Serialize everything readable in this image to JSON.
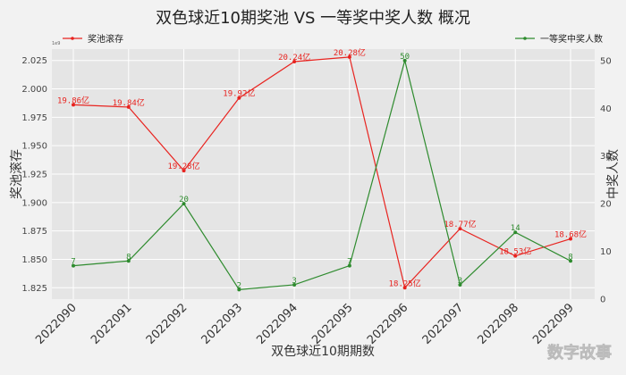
{
  "chart_data": {
    "type": "line",
    "title": "双色球近10期奖池 VS 一等奖中奖人数 概况",
    "xlabel": "双色球近10期期数",
    "categories": [
      "2022090",
      "2022091",
      "2022092",
      "2022093",
      "2022094",
      "2022095",
      "2022096",
      "2022097",
      "2022098",
      "2022099"
    ],
    "y_left": {
      "label": "奖池滚存",
      "ylim": [
        1.815,
        2.035
      ],
      "ticks": [
        "1.825",
        "1.850",
        "1.875",
        "1.900",
        "1.925",
        "1.950",
        "1.975",
        "2.000",
        "2.025"
      ],
      "offset_text": "1e9"
    },
    "y_right": {
      "label": "中奖人数",
      "ylim": [
        0,
        52.4
      ],
      "ticks": [
        "0",
        "10",
        "20",
        "30",
        "40",
        "50"
      ]
    },
    "series": [
      {
        "name": "奖池滚存",
        "axis": "left",
        "color": "#e8231f",
        "values": [
          1.986,
          1.984,
          1.928,
          1.992,
          2.024,
          2.028,
          1.825,
          1.877,
          1.853,
          1.868
        ],
        "labels": [
          "19.86亿",
          "19.84亿",
          "19.28亿",
          "19.92亿",
          "20.24亿",
          "20.28亿",
          "18.25亿",
          "18.77亿",
          "18.53亿",
          "18.68亿"
        ]
      },
      {
        "name": "一等奖中奖人数",
        "axis": "right",
        "color": "#2e8b2e",
        "values": [
          7,
          8,
          20,
          2,
          3,
          7,
          50,
          3,
          14,
          8
        ],
        "labels": [
          "7",
          "8",
          "20",
          "2",
          "3",
          "7",
          "50",
          "3",
          "14",
          "8"
        ]
      }
    ],
    "grid": true,
    "legend_left": "top-left",
    "legend_right": "top-right"
  },
  "watermark": "数字故事"
}
